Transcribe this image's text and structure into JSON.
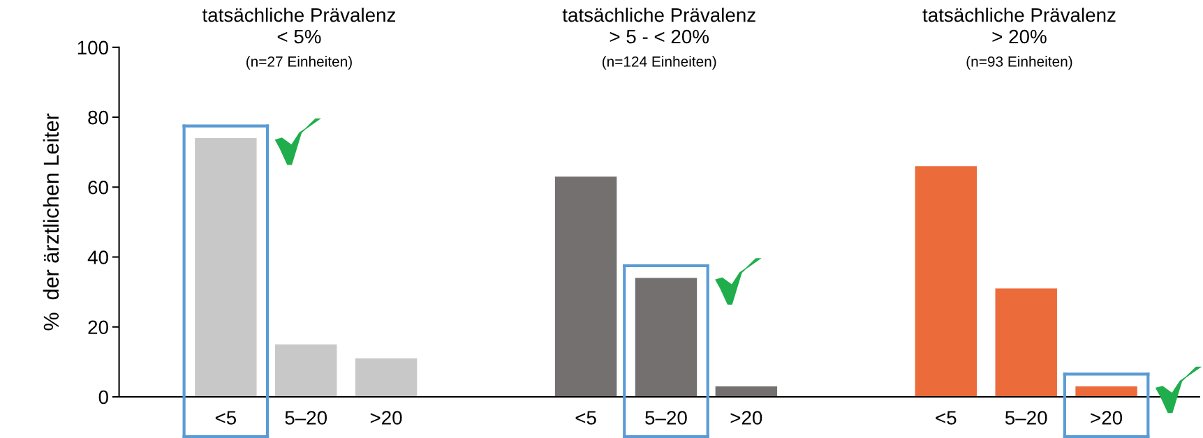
{
  "chart_data": [
    {
      "type": "bar",
      "title": "tatsächliche Prävalenz\n< 5%",
      "subtitle": "(n=27 Einheiten)",
      "ylabel": "%  der ärztlichen Leiter",
      "categories": [
        "<5",
        "5–20",
        ">20"
      ],
      "values": [
        74,
        15,
        11
      ],
      "color": "#c8c8c8",
      "ylim": [
        0,
        100
      ],
      "yticks": [
        0,
        20,
        40,
        60,
        80,
        100
      ]
    },
    {
      "type": "bar",
      "title": "tatsächliche Prävalenz\n> 5 - < 20%",
      "subtitle": "(n=124 Einheiten)",
      "categories": [
        "<5",
        "5–20",
        ">20"
      ],
      "values": [
        63,
        34,
        3
      ],
      "color": "#747070",
      "ylim": [
        0,
        100
      ],
      "yticks": [
        0,
        20,
        40,
        60,
        80,
        100
      ],
      "tick_labels": "x"
    },
    {
      "type": "bar",
      "title": "tatsächliche Prävalenz\n> 20%",
      "subtitle": "(n=93 Einheiten)",
      "categories": [
        "<5",
        "5–20",
        ">20"
      ],
      "values": [
        66,
        31,
        3
      ],
      "color": "#ec6b3b",
      "ylim": [
        0,
        100
      ],
      "yticks": [
        0,
        20,
        40,
        60,
        80,
        100
      ],
      "tick_labels": "x"
    }
  ]
}
